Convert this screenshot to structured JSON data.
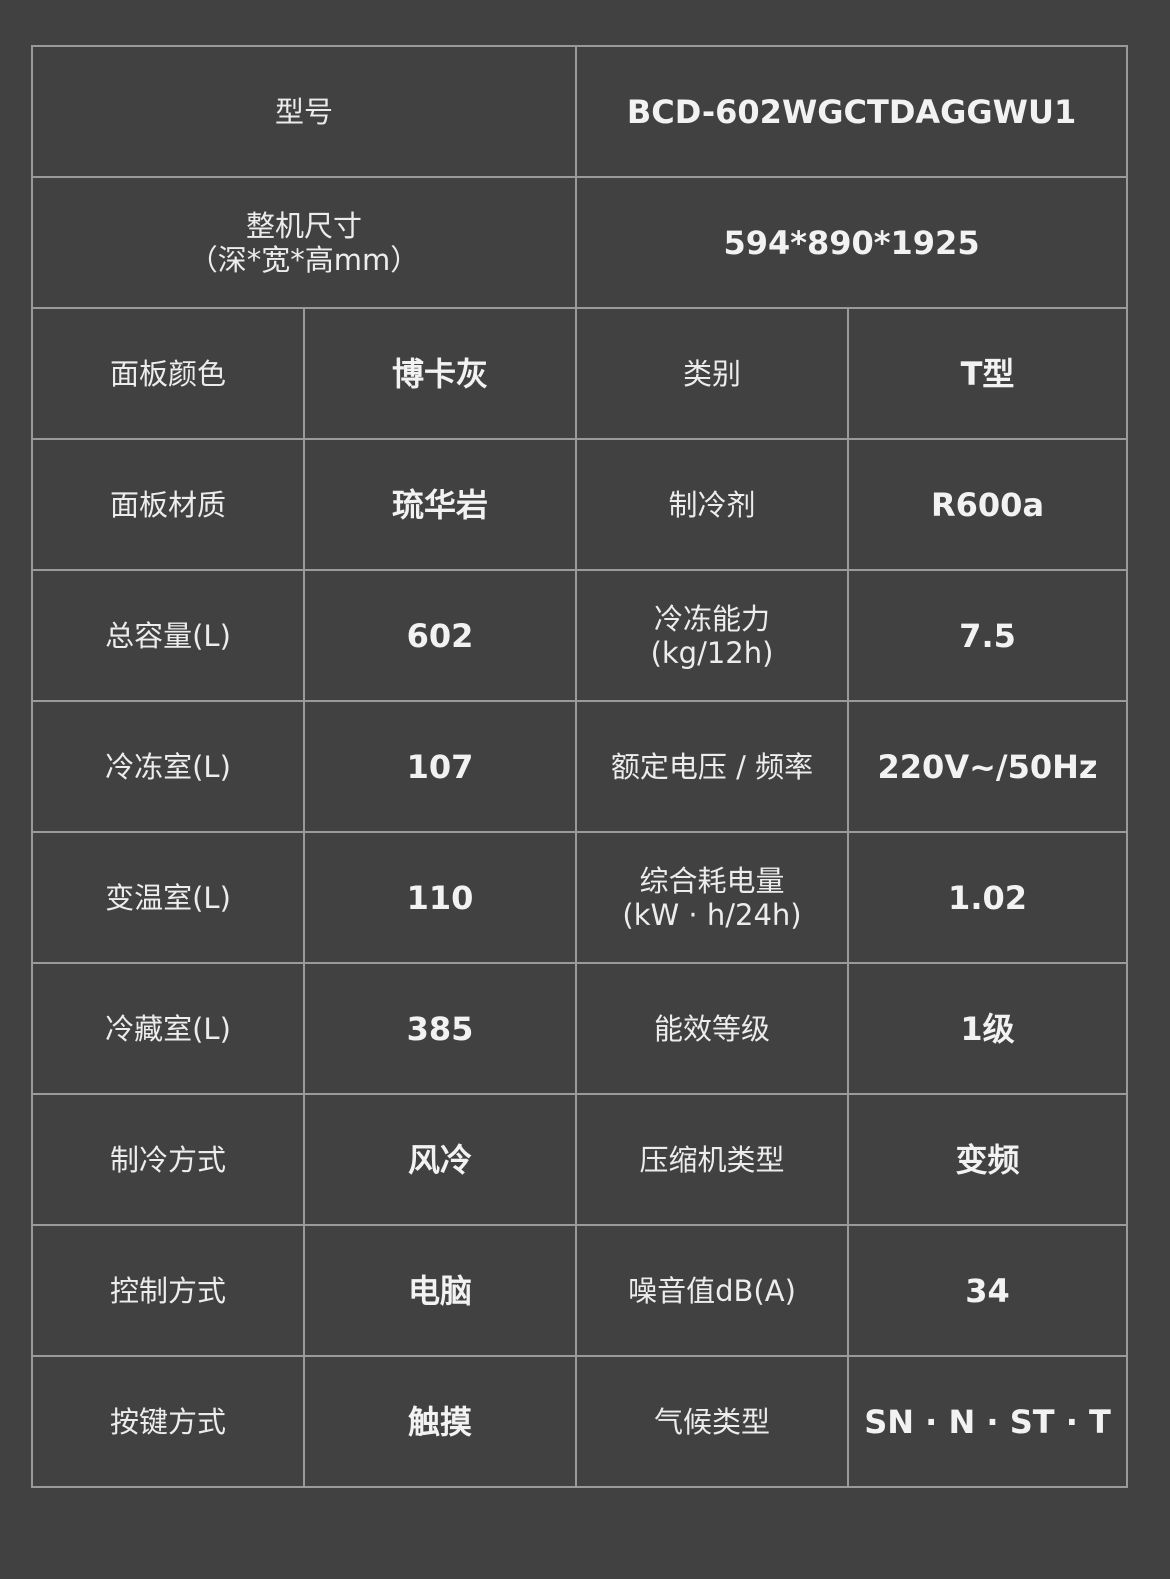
{
  "model": {
    "label": "型号",
    "value": "BCD-602WGCTDAGGWU1"
  },
  "size": {
    "label_line1": "整机尺寸",
    "label_line2": "（深*宽*高mm）",
    "value": "594*890*1925"
  },
  "rows": [
    {
      "l1": "面板颜色",
      "v1": "博卡灰",
      "l2": "类别",
      "l2b": "",
      "v2": "T型"
    },
    {
      "l1": "面板材质",
      "v1": "琉华岩",
      "l2": "制冷剂",
      "l2b": "",
      "v2": "R600a"
    },
    {
      "l1": "总容量(L)",
      "v1": "602",
      "l2": "冷冻能力",
      "l2b": "(kg/12h)",
      "v2": "7.5"
    },
    {
      "l1": "冷冻室(L)",
      "v1": "107",
      "l2": "额定电压 / 频率",
      "l2b": "",
      "v2": "220V~/50Hz"
    },
    {
      "l1": "变温室(L)",
      "v1": "110",
      "l2": "综合耗电量",
      "l2b": "(kW · h/24h)",
      "v2": "1.02"
    },
    {
      "l1": "冷藏室(L)",
      "v1": "385",
      "l2": "能效等级",
      "l2b": "",
      "v2": "1级"
    },
    {
      "l1": "制冷方式",
      "v1": "风冷",
      "l2": "压缩机类型",
      "l2b": "",
      "v2": "变频"
    },
    {
      "l1": "控制方式",
      "v1": "电脑",
      "l2": "噪音值dB(A)",
      "l2b": "",
      "v2": "34"
    },
    {
      "l1": "按键方式",
      "v1": "触摸",
      "l2": "气候类型",
      "l2b": "",
      "v2": "SN · N · ST · T"
    }
  ]
}
